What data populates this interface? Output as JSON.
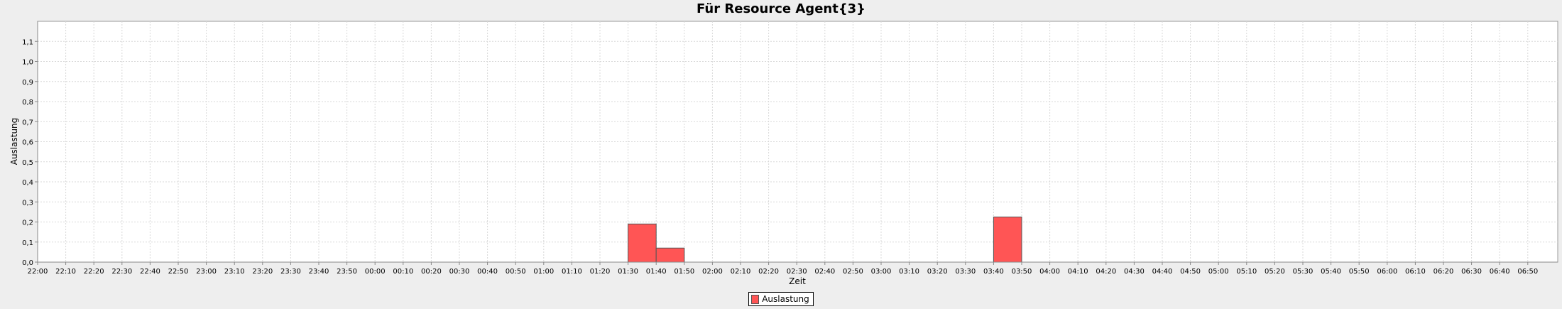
{
  "chart_data": {
    "type": "bar",
    "title": "Für Resource Agent{3}",
    "xlabel": "Zeit",
    "ylabel": "Auslastung",
    "ylim": [
      0,
      1.2
    ],
    "yticks": [
      "0,0",
      "0,1",
      "0,2",
      "0,3",
      "0,4",
      "0,5",
      "0,6",
      "0,7",
      "0,8",
      "0,9",
      "1,0",
      "1,1"
    ],
    "categories": [
      "22:00",
      "22:10",
      "22:20",
      "22:30",
      "22:40",
      "22:50",
      "23:00",
      "23:10",
      "23:20",
      "23:30",
      "23:40",
      "23:50",
      "00:00",
      "00:10",
      "00:20",
      "00:30",
      "00:40",
      "00:50",
      "01:00",
      "01:10",
      "01:20",
      "01:30",
      "01:40",
      "01:50",
      "02:00",
      "02:10",
      "02:20",
      "02:30",
      "02:40",
      "02:50",
      "03:00",
      "03:10",
      "03:20",
      "03:30",
      "03:40",
      "03:50",
      "04:00",
      "04:10",
      "04:20",
      "04:30",
      "04:40",
      "04:50",
      "05:00",
      "05:10",
      "05:20",
      "05:30",
      "05:40",
      "05:50",
      "06:00",
      "06:10",
      "06:20",
      "06:30",
      "06:40",
      "06:50"
    ],
    "series": [
      {
        "name": "Auslastung",
        "color": "#ff5555",
        "values": [
          0,
          0,
          0,
          0,
          0,
          0,
          0,
          0,
          0,
          0,
          0,
          0,
          0,
          0,
          0,
          0,
          0,
          0,
          0,
          0,
          0,
          0.19,
          0.07,
          0,
          0,
          0,
          0,
          0,
          0,
          0,
          0,
          0,
          0,
          0,
          0.225,
          0,
          0,
          0,
          0,
          0,
          0,
          0,
          0,
          0,
          0,
          0,
          0,
          0,
          0,
          0,
          0,
          0,
          0,
          0
        ]
      }
    ],
    "grid": true,
    "legend_position": "bottom-center"
  }
}
